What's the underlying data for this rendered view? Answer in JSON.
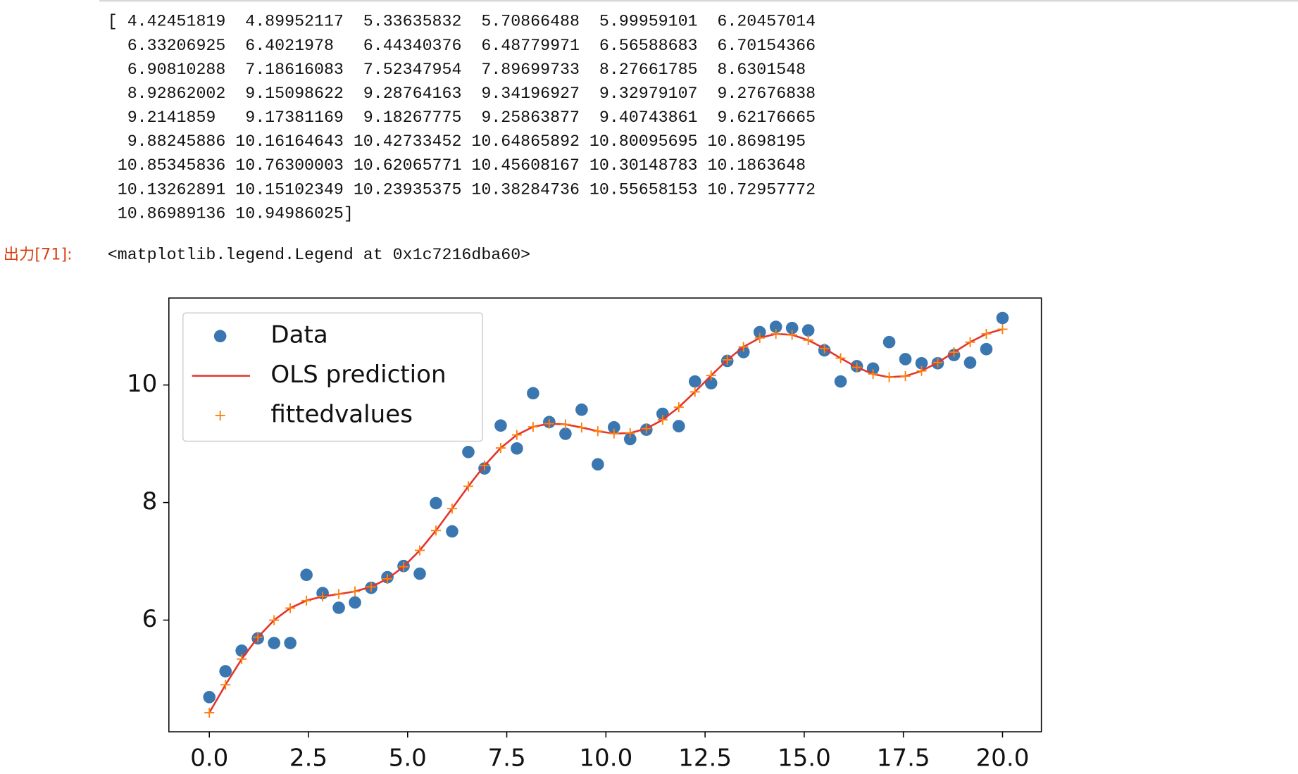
{
  "output_text": {
    "array_lines": [
      "[ 4.42451819  4.89952117  5.33635832  5.70866488  5.99959101  6.20457014",
      "  6.33206925  6.4021978   6.44340376  6.48779971  6.56588683  6.70154366",
      "  6.90810288  7.18616083  7.52347954  7.89699733  8.27661785  8.6301548",
      "  8.92862002  9.15098622  9.28764163  9.34196927  9.32979107  9.27676838",
      "  9.2141859   9.17381169  9.18267775  9.25863877  9.40743861  9.62176665",
      "  9.88245886 10.16164643 10.42733452 10.64865892 10.80095695 10.8698195",
      " 10.85345836 10.76300003 10.62065771 10.45608167 10.30148783 10.1863648",
      " 10.13262891 10.15102349 10.23935375 10.38284736 10.55658153 10.72957772",
      " 10.86989136 10.94986025]"
    ],
    "prompt": "出力[71]:",
    "repr": "<matplotlib.legend.Legend at 0x1c7216dba60>"
  },
  "chart_data": {
    "type": "scatter",
    "x": [
      0,
      0.408,
      0.816,
      1.224,
      1.633,
      2.041,
      2.449,
      2.857,
      3.265,
      3.673,
      4.082,
      4.49,
      4.898,
      5.306,
      5.714,
      6.122,
      6.531,
      6.939,
      7.347,
      7.755,
      8.163,
      8.571,
      8.98,
      9.388,
      9.796,
      10.204,
      10.612,
      11.02,
      11.429,
      11.837,
      12.245,
      12.653,
      13.061,
      13.469,
      13.878,
      14.286,
      14.694,
      15.102,
      15.51,
      15.918,
      16.327,
      16.735,
      17.143,
      17.551,
      17.959,
      18.367,
      18.776,
      19.184,
      19.592,
      20
    ],
    "series": [
      {
        "name": "Data",
        "type": "scatter",
        "marker": "o",
        "color": "#3a76b0",
        "values": [
          4.69,
          5.13,
          5.48,
          5.69,
          5.61,
          5.61,
          6.77,
          6.46,
          6.21,
          6.3,
          6.55,
          6.73,
          6.92,
          6.79,
          7.99,
          7.51,
          8.86,
          8.58,
          9.31,
          8.92,
          9.86,
          9.37,
          9.17,
          9.58,
          8.65,
          9.28,
          9.08,
          9.24,
          9.51,
          9.3,
          10.06,
          10.03,
          10.41,
          10.56,
          10.9,
          10.99,
          10.97,
          10.93,
          10.59,
          10.06,
          10.32,
          10.28,
          10.73,
          10.44,
          10.37,
          10.37,
          10.51,
          10.38,
          10.61,
          11.14
        ]
      },
      {
        "name": "OLS prediction",
        "type": "line",
        "color": "#e3352b",
        "values": [
          4.42451819,
          4.89952117,
          5.33635832,
          5.70866488,
          5.99959101,
          6.20457014,
          6.33206925,
          6.4021978,
          6.44340376,
          6.48779971,
          6.56588683,
          6.70154366,
          6.90810288,
          7.18616083,
          7.52347954,
          7.89699733,
          8.27661785,
          8.6301548,
          8.92862002,
          9.15098622,
          9.28764163,
          9.34196927,
          9.32979107,
          9.27676838,
          9.2141859,
          9.17381169,
          9.18267775,
          9.25863877,
          9.40743861,
          9.62176665,
          9.88245886,
          10.16164643,
          10.42733452,
          10.64865892,
          10.80095695,
          10.8698195,
          10.85345836,
          10.76300003,
          10.62065771,
          10.45608167,
          10.30148783,
          10.1863648,
          10.13262891,
          10.15102349,
          10.23935375,
          10.38284736,
          10.55658153,
          10.72957772,
          10.86989136,
          10.94986025
        ]
      },
      {
        "name": "fittedvalues",
        "type": "scatter",
        "marker": "+",
        "color": "#ff7f0e",
        "values": [
          4.42451819,
          4.89952117,
          5.33635832,
          5.70866488,
          5.99959101,
          6.20457014,
          6.33206925,
          6.4021978,
          6.44340376,
          6.48779971,
          6.56588683,
          6.70154366,
          6.90810288,
          7.18616083,
          7.52347954,
          7.89699733,
          8.27661785,
          8.6301548,
          8.92862002,
          9.15098622,
          9.28764163,
          9.34196927,
          9.32979107,
          9.27676838,
          9.2141859,
          9.17381169,
          9.18267775,
          9.25863877,
          9.40743861,
          9.62176665,
          9.88245886,
          10.16164643,
          10.42733452,
          10.64865892,
          10.80095695,
          10.8698195,
          10.85345836,
          10.76300003,
          10.62065771,
          10.45608167,
          10.30148783,
          10.1863648,
          10.13262891,
          10.15102349,
          10.23935375,
          10.38284736,
          10.55658153,
          10.72957772,
          10.86989136,
          10.94986025
        ]
      }
    ],
    "xlim": [
      -1.02,
      20.98
    ],
    "ylim": [
      4.1,
      11.48
    ],
    "xticks": [
      {
        "value": 0,
        "label": "0.0"
      },
      2.5,
      {
        "value": 5,
        "label": "5.0"
      },
      7.5,
      {
        "value": 10,
        "label": "10.0"
      },
      12.5,
      {
        "value": 15,
        "label": "15.0"
      },
      17.5,
      {
        "value": 20,
        "label": "20.0"
      }
    ],
    "yticks": [
      6,
      8,
      10
    ],
    "grid": false,
    "legend": "upper left"
  }
}
